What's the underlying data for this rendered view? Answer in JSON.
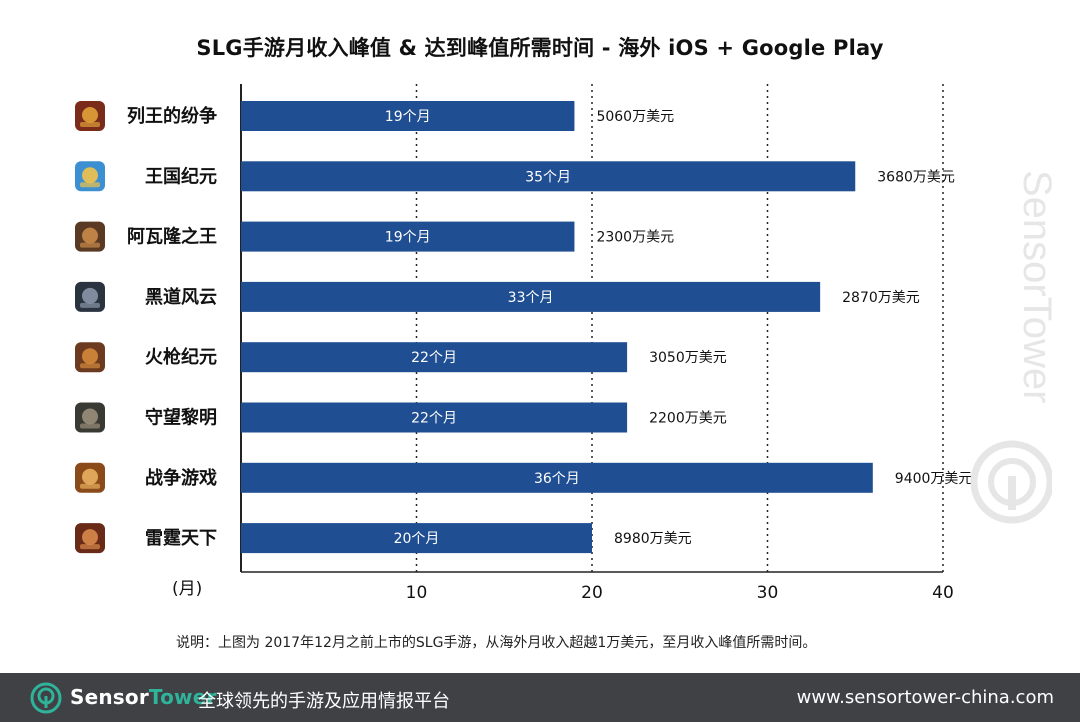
{
  "colors": {
    "bar": "#1f4e92",
    "grid": "#222222",
    "footer_bg": "#3f4145",
    "brand_accent": "#2fb39a"
  },
  "chart_data": {
    "type": "bar",
    "orientation": "horizontal",
    "title": "SLG手游月收入峰值 & 达到峰值所需时间 - 海外 iOS + Google Play",
    "xlabel": "(月)",
    "ylabel": "",
    "xlim": [
      0,
      40
    ],
    "xticks": [
      10,
      20,
      30,
      40
    ],
    "grid": "vertical dotted",
    "categories": [
      "列王的纷争",
      "王国纪元",
      "阿瓦隆之王",
      "黑道风云",
      "火枪纪元",
      "守望黎明",
      "战争游戏",
      "雷霆天下"
    ],
    "values": [
      19,
      35,
      19,
      33,
      22,
      22,
      36,
      20
    ],
    "bar_labels": [
      "19个月",
      "35个月",
      "19个月",
      "33个月",
      "22个月",
      "22个月",
      "36个月",
      "20个月"
    ],
    "annotations": [
      "5060万美元",
      "3680万美元",
      "2300万美元",
      "2870万美元",
      "3050万美元",
      "2200万美元",
      "9400万美元",
      "8980万美元"
    ],
    "icons": [
      "clash-of-kings-icon",
      "lords-mobile-icon",
      "king-of-avalon-icon",
      "mafia-city-icon",
      "guns-of-glory-icon",
      "last-empire-icon",
      "game-of-war-icon",
      "mobile-strike-icon"
    ]
  },
  "footnote": "说明：上图为 2017年12月之前上市的SLG手游，从海外月收入超越1万美元，至月收入峰值所需时间。",
  "watermark": "SensorTower",
  "footer": {
    "brand_first": "Sensor",
    "brand_second": "Tower",
    "slogan": "全球领先的手游及应用情报平台",
    "url": "www.sensortower-china.com"
  }
}
